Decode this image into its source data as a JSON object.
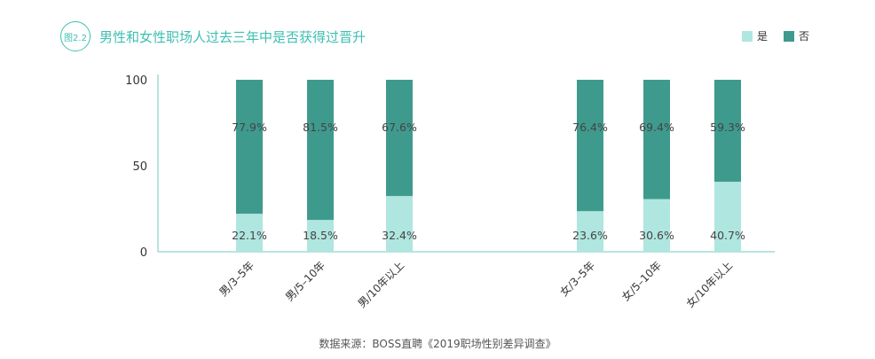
{
  "header": {
    "badge": "图2.2",
    "title": "男性和女性职场人过去三年中是否获得过晋升"
  },
  "legend": [
    {
      "label": "是",
      "color": "#afe6e0"
    },
    {
      "label": "否",
      "color": "#3f9a8e"
    }
  ],
  "footer": {
    "source": "数据来源：BOSS直聘《2019职场性别差异调查》"
  },
  "chart_data": {
    "type": "bar",
    "stacked": true,
    "categories": [
      "男/3–5年",
      "男/5–10年",
      "男/10年以上",
      "女/3–5年",
      "女/5–10年",
      "女/10年以上"
    ],
    "series": [
      {
        "name": "是",
        "values": [
          22.1,
          18.5,
          32.4,
          23.6,
          30.6,
          40.7
        ],
        "color": "#afe6e0"
      },
      {
        "name": "否",
        "values": [
          77.9,
          81.5,
          67.6,
          76.4,
          69.4,
          59.3
        ],
        "color": "#3f9a8e"
      }
    ],
    "yticks": [
      0,
      50,
      100
    ],
    "ylim": [
      0,
      100
    ],
    "grid": false
  }
}
